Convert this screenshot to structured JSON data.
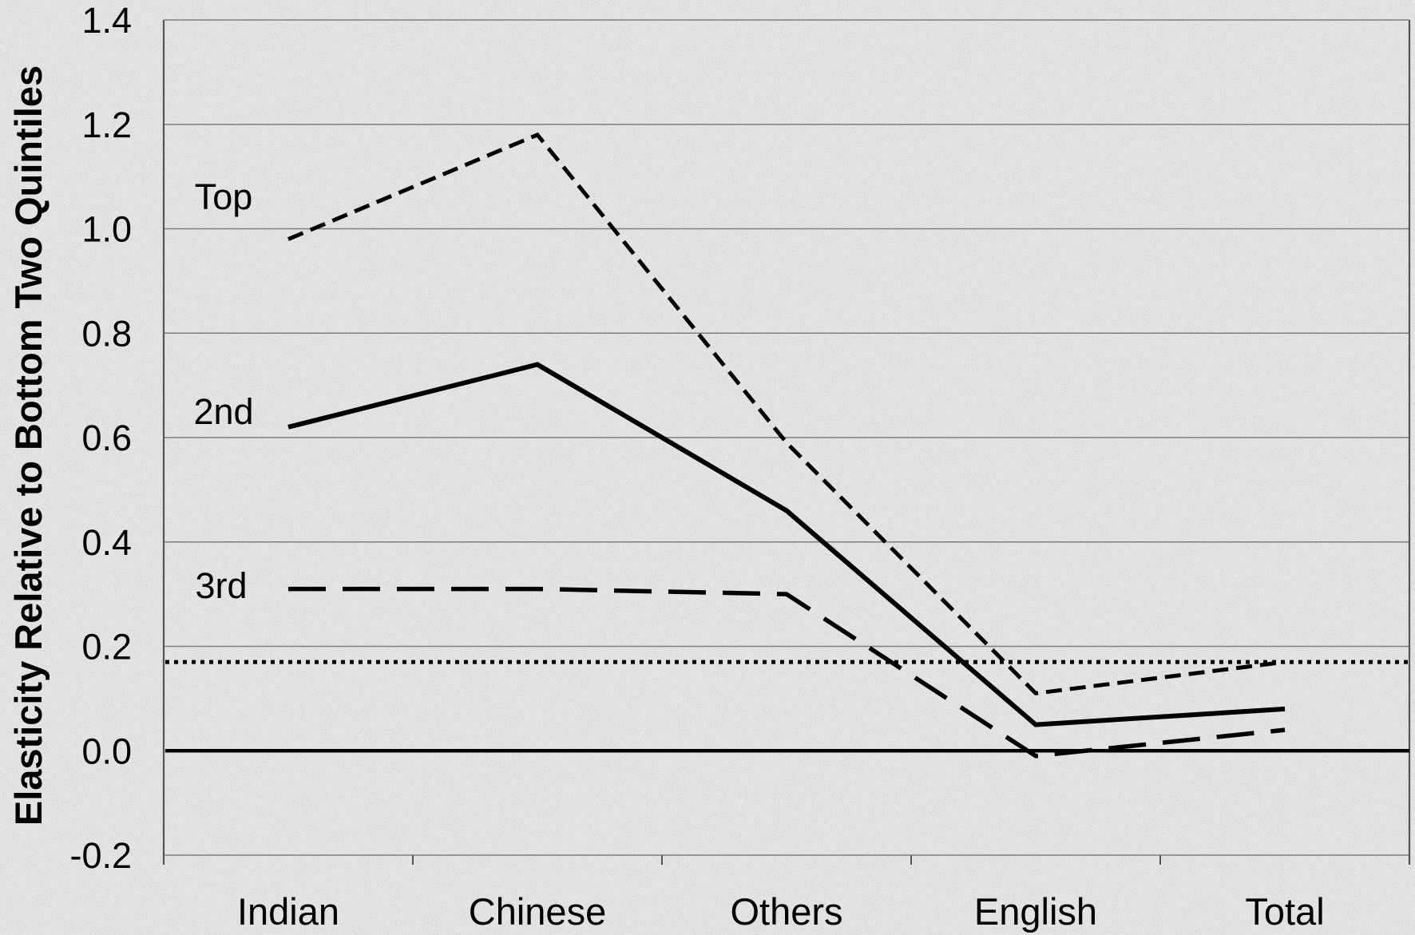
{
  "colors": {
    "background": "#e0e0e0",
    "ink": "#000000",
    "grid": "#7f7f7f",
    "axis": "#555555"
  },
  "chart_data": {
    "type": "line",
    "ylabel": "Elasticity Relative to Bottom Two Quintiles",
    "categories": [
      "Indian",
      "Chinese",
      "Others",
      "English",
      "Total"
    ],
    "ylim": [
      -0.2,
      1.4
    ],
    "yticks": [
      "1.4",
      "1.2",
      "1.0",
      "0.8",
      "0.6",
      "0.4",
      "0.2",
      "0.0",
      "-0.2"
    ],
    "grid": true,
    "legend": "none",
    "series": [
      {
        "name": "Top",
        "style": "short-dash",
        "values": [
          0.98,
          1.18,
          0.59,
          0.11,
          0.17
        ]
      },
      {
        "name": "2nd",
        "style": "solid",
        "values": [
          0.62,
          0.74,
          0.46,
          0.05,
          0.08
        ]
      },
      {
        "name": "3rd",
        "style": "long-dash",
        "values": [
          0.31,
          0.31,
          0.3,
          -0.01,
          0.04
        ]
      }
    ],
    "reference_lines": [
      {
        "value": 0.17,
        "style": "dotted"
      },
      {
        "value": 0.0,
        "style": "solid"
      }
    ]
  }
}
